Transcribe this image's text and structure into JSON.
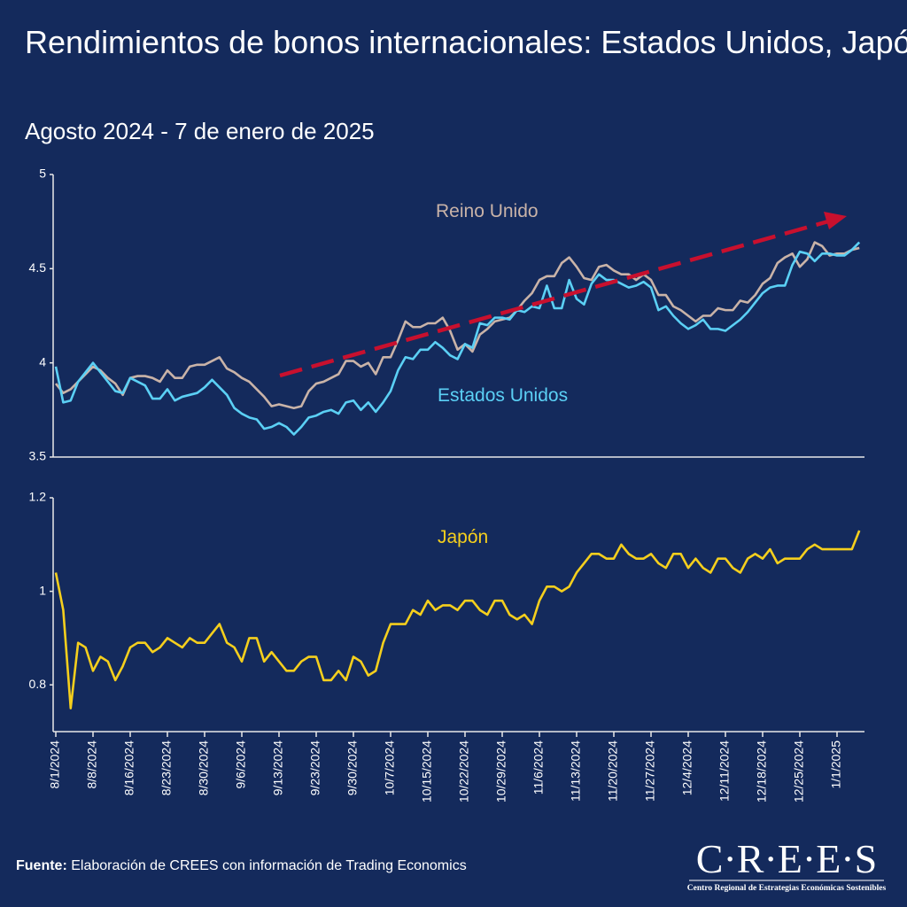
{
  "title": "Rendimientos de bonos internacionales: Estados Unidos, Japón y Reino Unido",
  "subtitle": "Agosto 2024 - 7 de enero de 2025",
  "footer": {
    "source_label": "Fuente:",
    "source": "Elaboración de CREES con información de Trading Economics",
    "logo": "C·R·E·E·S",
    "logo_subtitle": "Centro Regional de Estrategias Económicas Sostenibles"
  },
  "chart_data": [
    {
      "type": "line",
      "ylim": [
        3.5,
        5
      ],
      "yticks": [
        3.5,
        4,
        4.5,
        5
      ],
      "series": [
        {
          "name": "Reino Unido",
          "color": "#c9b3a8",
          "values": [
            3.89,
            3.84,
            3.86,
            3.9,
            3.94,
            3.98,
            3.96,
            3.92,
            3.89,
            3.83,
            3.92,
            3.93,
            3.93,
            3.92,
            3.9,
            3.96,
            3.92,
            3.92,
            3.98,
            3.99,
            3.99,
            4.01,
            4.03,
            3.97,
            3.95,
            3.92,
            3.9,
            3.86,
            3.82,
            3.77,
            3.78,
            3.77,
            3.76,
            3.77,
            3.85,
            3.89,
            3.9,
            3.92,
            3.94,
            4.01,
            4.01,
            3.98,
            4,
            3.94,
            4.03,
            4.03,
            4.12,
            4.22,
            4.19,
            4.19,
            4.21,
            4.21,
            4.24,
            4.17,
            4.07,
            4.1,
            4.06,
            4.15,
            4.18,
            4.22,
            4.23,
            4.24,
            4.28,
            4.33,
            4.37,
            4.44,
            4.46,
            4.46,
            4.53,
            4.56,
            4.51,
            4.45,
            4.44,
            4.51,
            4.52,
            4.49,
            4.47,
            4.47,
            4.44,
            4.47,
            4.44,
            4.36,
            4.36,
            4.3,
            4.28,
            4.25,
            4.22,
            4.25,
            4.25,
            4.29,
            4.28,
            4.28,
            4.33,
            4.32,
            4.36,
            4.42,
            4.45,
            4.53,
            4.56,
            4.58,
            4.51,
            4.55,
            4.64,
            4.62,
            4.57,
            4.58,
            4.58,
            4.6,
            4.61
          ]
        },
        {
          "name": "Estados Unidos",
          "color": "#5bd0f5",
          "values": [
            3.98,
            3.79,
            3.8,
            3.9,
            3.95,
            4,
            3.95,
            3.9,
            3.85,
            3.84,
            3.92,
            3.9,
            3.88,
            3.81,
            3.81,
            3.86,
            3.8,
            3.82,
            3.83,
            3.84,
            3.87,
            3.91,
            3.87,
            3.83,
            3.76,
            3.73,
            3.71,
            3.7,
            3.65,
            3.66,
            3.68,
            3.66,
            3.62,
            3.66,
            3.71,
            3.72,
            3.74,
            3.75,
            3.73,
            3.79,
            3.8,
            3.75,
            3.79,
            3.74,
            3.79,
            3.85,
            3.96,
            4.03,
            4.02,
            4.07,
            4.07,
            4.11,
            4.08,
            4.04,
            4.02,
            4.1,
            4.08,
            4.21,
            4.2,
            4.24,
            4.24,
            4.23,
            4.28,
            4.27,
            4.3,
            4.29,
            4.41,
            4.29,
            4.29,
            4.44,
            4.34,
            4.31,
            4.42,
            4.47,
            4.44,
            4.44,
            4.42,
            4.4,
            4.41,
            4.43,
            4.4,
            4.28,
            4.3,
            4.25,
            4.21,
            4.18,
            4.2,
            4.23,
            4.18,
            4.18,
            4.17,
            4.2,
            4.23,
            4.27,
            4.32,
            4.37,
            4.4,
            4.41,
            4.41,
            4.52,
            4.59,
            4.58,
            4.54,
            4.58,
            4.58,
            4.57,
            4.57,
            4.6,
            4.64
          ]
        }
      ]
    },
    {
      "type": "line",
      "ylim": [
        0.7,
        1.2
      ],
      "yticks": [
        0.8,
        1,
        1.2
      ],
      "categories": [
        "8/1/2024",
        null,
        null,
        null,
        null,
        "8/8/2024",
        null,
        null,
        null,
        null,
        "8/16/2024",
        null,
        null,
        null,
        null,
        "8/23/2024",
        null,
        null,
        null,
        null,
        "8/30/2024",
        null,
        null,
        null,
        null,
        "9/6/2024",
        null,
        null,
        null,
        null,
        "9/13/2024",
        null,
        null,
        null,
        null,
        "9/23/2024",
        null,
        null,
        null,
        null,
        "9/30/2024",
        null,
        null,
        null,
        null,
        "10/7/2024",
        null,
        null,
        null,
        null,
        "10/15/2024",
        null,
        null,
        null,
        null,
        "10/22/2024",
        null,
        null,
        null,
        null,
        "10/29/2024",
        null,
        null,
        null,
        null,
        "11/6/2024",
        null,
        null,
        null,
        null,
        "11/13/2024",
        null,
        null,
        null,
        null,
        "11/20/2024",
        null,
        null,
        null,
        null,
        "11/27/2024",
        null,
        null,
        null,
        null,
        "12/4/2024",
        null,
        null,
        null,
        null,
        "12/11/2024",
        null,
        null,
        null,
        null,
        "12/18/2024",
        null,
        null,
        null,
        null,
        "12/25/2024",
        null,
        null,
        null,
        null,
        "1/1/2025",
        null,
        null,
        null
      ],
      "series": [
        {
          "name": "Japón",
          "color": "#f5cf1d",
          "values": [
            1.04,
            0.96,
            0.75,
            0.89,
            0.88,
            0.83,
            0.86,
            0.85,
            0.81,
            0.84,
            0.88,
            0.89,
            0.89,
            0.87,
            0.88,
            0.9,
            0.89,
            0.88,
            0.9,
            0.89,
            0.89,
            0.91,
            0.93,
            0.89,
            0.88,
            0.85,
            0.9,
            0.9,
            0.85,
            0.87,
            0.85,
            0.83,
            0.83,
            0.85,
            0.86,
            0.86,
            0.81,
            0.81,
            0.83,
            0.81,
            0.86,
            0.85,
            0.82,
            0.83,
            0.89,
            0.93,
            0.93,
            0.93,
            0.96,
            0.95,
            0.98,
            0.96,
            0.97,
            0.97,
            0.96,
            0.98,
            0.98,
            0.96,
            0.95,
            0.98,
            0.98,
            0.95,
            0.94,
            0.95,
            0.93,
            0.98,
            1.01,
            1.01,
            1,
            1.01,
            1.04,
            1.06,
            1.08,
            1.08,
            1.07,
            1.07,
            1.1,
            1.08,
            1.07,
            1.07,
            1.08,
            1.06,
            1.05,
            1.08,
            1.08,
            1.05,
            1.07,
            1.05,
            1.04,
            1.07,
            1.07,
            1.05,
            1.04,
            1.07,
            1.08,
            1.07,
            1.09,
            1.06,
            1.07,
            1.07,
            1.07,
            1.09,
            1.1,
            1.09,
            1.09,
            1.09,
            1.09,
            1.09,
            1.13
          ]
        }
      ]
    }
  ]
}
